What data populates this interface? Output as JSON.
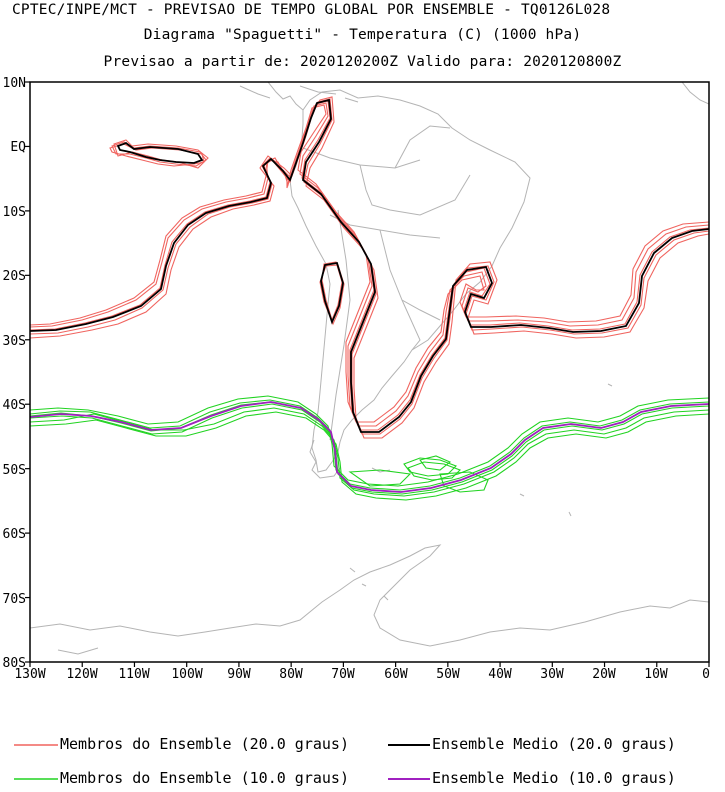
{
  "titles": {
    "line1": "CPTEC/INPE/MCT - PREVISAO DE TEMPO GLOBAL POR ENSEMBLE - TQ0126L028",
    "line2": "Diagrama \"Spaguetti\" - Temperatura (C) (1000 hPa)",
    "line3": "Previsao a partir de: 2020120200Z  Valido para: 2020120800Z"
  },
  "axes": {
    "lat_labels": [
      "10N",
      "EQ",
      "10S",
      "20S",
      "30S",
      "40S",
      "50S",
      "60S",
      "70S",
      "80S"
    ],
    "lon_labels": [
      "130W",
      "120W",
      "110W",
      "100W",
      "90W",
      "80W",
      "70W",
      "60W",
      "50W",
      "40W",
      "30W",
      "20W",
      "10W",
      "0"
    ]
  },
  "legend": {
    "members20": "Membros do Ensemble (20.0 graus)",
    "mean20": "Ensemble Medio (20.0 graus)",
    "members10": "Membros do Ensemble (10.0 graus)",
    "mean10": "Ensemble Medio (10.0 graus)"
  },
  "colors": {
    "members20": "#f0645f",
    "mean20": "#000000",
    "members10": "#21d321",
    "mean10": "#a020c0",
    "coast": "#b4b4b4"
  },
  "map_extent": {
    "lon": [
      -130,
      0
    ],
    "lat": [
      -80,
      10
    ]
  }
}
